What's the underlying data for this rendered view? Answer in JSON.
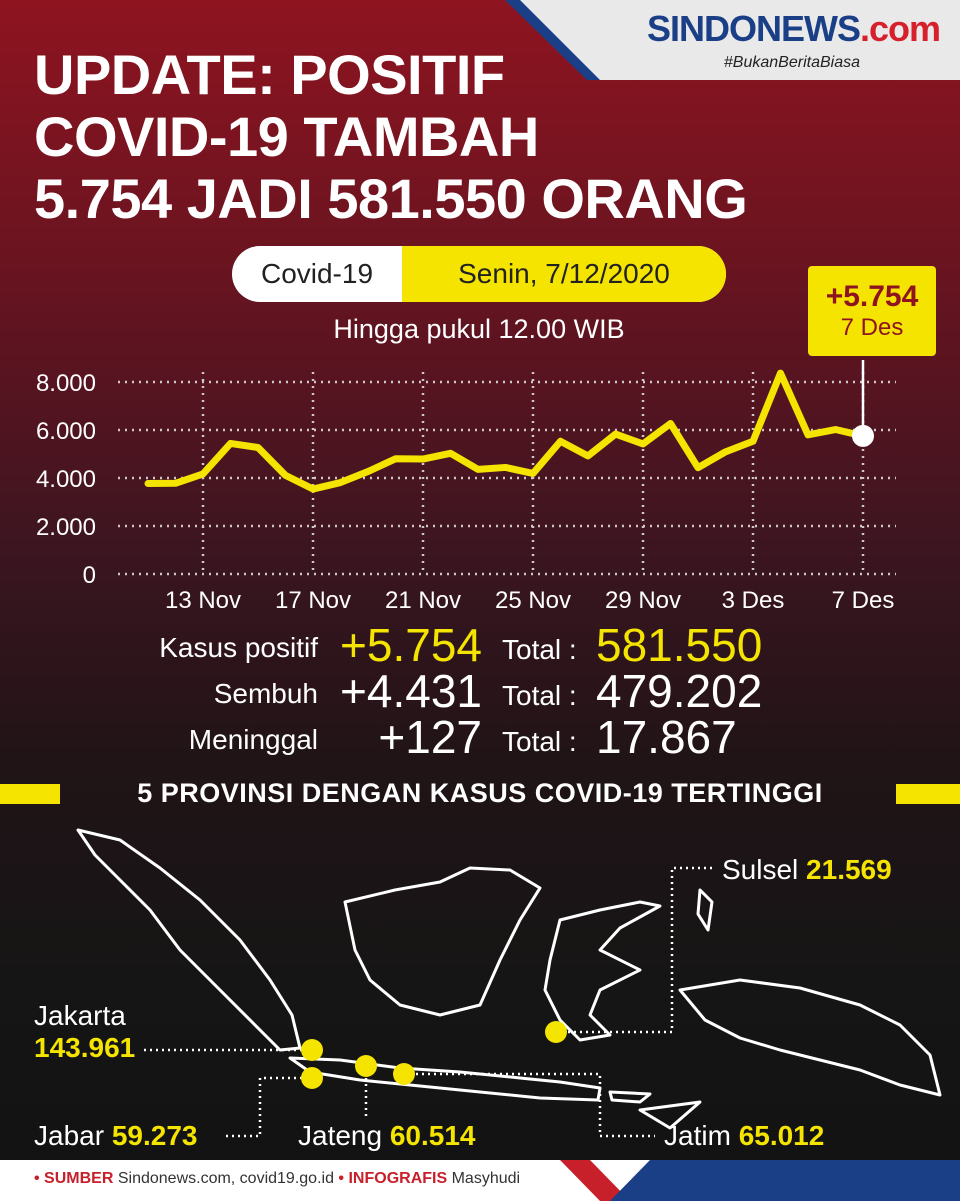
{
  "brand": {
    "logo_main": "SINDONEWS",
    "logo_suffix": ".com",
    "tagline": "#BukanBeritaBiasa"
  },
  "headline": {
    "line1": "UPDATE: POSITIF",
    "line2": "COVID-19 TAMBAH",
    "line3": "5.754 JADI 581.550 ORANG"
  },
  "pill": {
    "left": "Covid-19",
    "right": "Senin, 7/12/2020"
  },
  "subtitle": "Hingga pukul 12.00 WIB",
  "callout": {
    "value": "+5.754",
    "date": "7 Des"
  },
  "colors": {
    "accent": "#f4e400",
    "brand_blue": "#1b3f86",
    "brand_red": "#c8202a",
    "bg_top": "#8e1420"
  },
  "chart_data": {
    "type": "line",
    "x": [
      "11 Nov",
      "12 Nov",
      "13 Nov",
      "14 Nov",
      "15 Nov",
      "16 Nov",
      "17 Nov",
      "18 Nov",
      "19 Nov",
      "20 Nov",
      "21 Nov",
      "22 Nov",
      "23 Nov",
      "24 Nov",
      "25 Nov",
      "26 Nov",
      "27 Nov",
      "28 Nov",
      "29 Nov",
      "30 Nov",
      "1 Des",
      "2 Des",
      "3 Des",
      "4 Des",
      "5 Des",
      "6 Des",
      "7 Des"
    ],
    "values": [
      3770,
      3780,
      4170,
      5440,
      5270,
      4110,
      3540,
      3810,
      4270,
      4800,
      4790,
      5030,
      4360,
      4440,
      4190,
      5530,
      4920,
      5830,
      5420,
      6270,
      4430,
      5090,
      5530,
      8370,
      5800,
      6020,
      5754
    ],
    "xtick_labels": [
      "13 Nov",
      "17 Nov",
      "21 Nov",
      "25 Nov",
      "29 Nov",
      "3 Des",
      "7 Des"
    ],
    "ytick_labels": [
      "0",
      "2.000",
      "4.000",
      "6.000",
      "8.000"
    ],
    "ylim": [
      0,
      8000
    ],
    "grid": true,
    "highlight": {
      "x": "7 Des",
      "label": "+5.754"
    }
  },
  "stats": {
    "positif": {
      "label": "Kasus positif",
      "delta": "+5.754",
      "total_label": "Total :",
      "total": "581.550"
    },
    "sembuh": {
      "label": "Sembuh",
      "delta": "+4.431",
      "total_label": "Total :",
      "total": "479.202"
    },
    "meninggal": {
      "label": "Meninggal",
      "delta": "+127",
      "total_label": "Total :",
      "total": "17.867"
    }
  },
  "provinces_title": "5 PROVINSI DENGAN KASUS COVID-19 TERTINGGI",
  "provinces": [
    {
      "name": "Jakarta",
      "value": "143.961"
    },
    {
      "name": "Jabar",
      "value": "59.273"
    },
    {
      "name": "Jateng",
      "value": "60.514"
    },
    {
      "name": "Jatim",
      "value": "65.012"
    },
    {
      "name": "Sulsel",
      "value": "21.569"
    }
  ],
  "footer": {
    "src_label": "• SUMBER",
    "src_text": "Sindonews.com, covid19.go.id",
    "info_label": "• INFOGRAFIS",
    "info_text": "Masyhudi"
  }
}
